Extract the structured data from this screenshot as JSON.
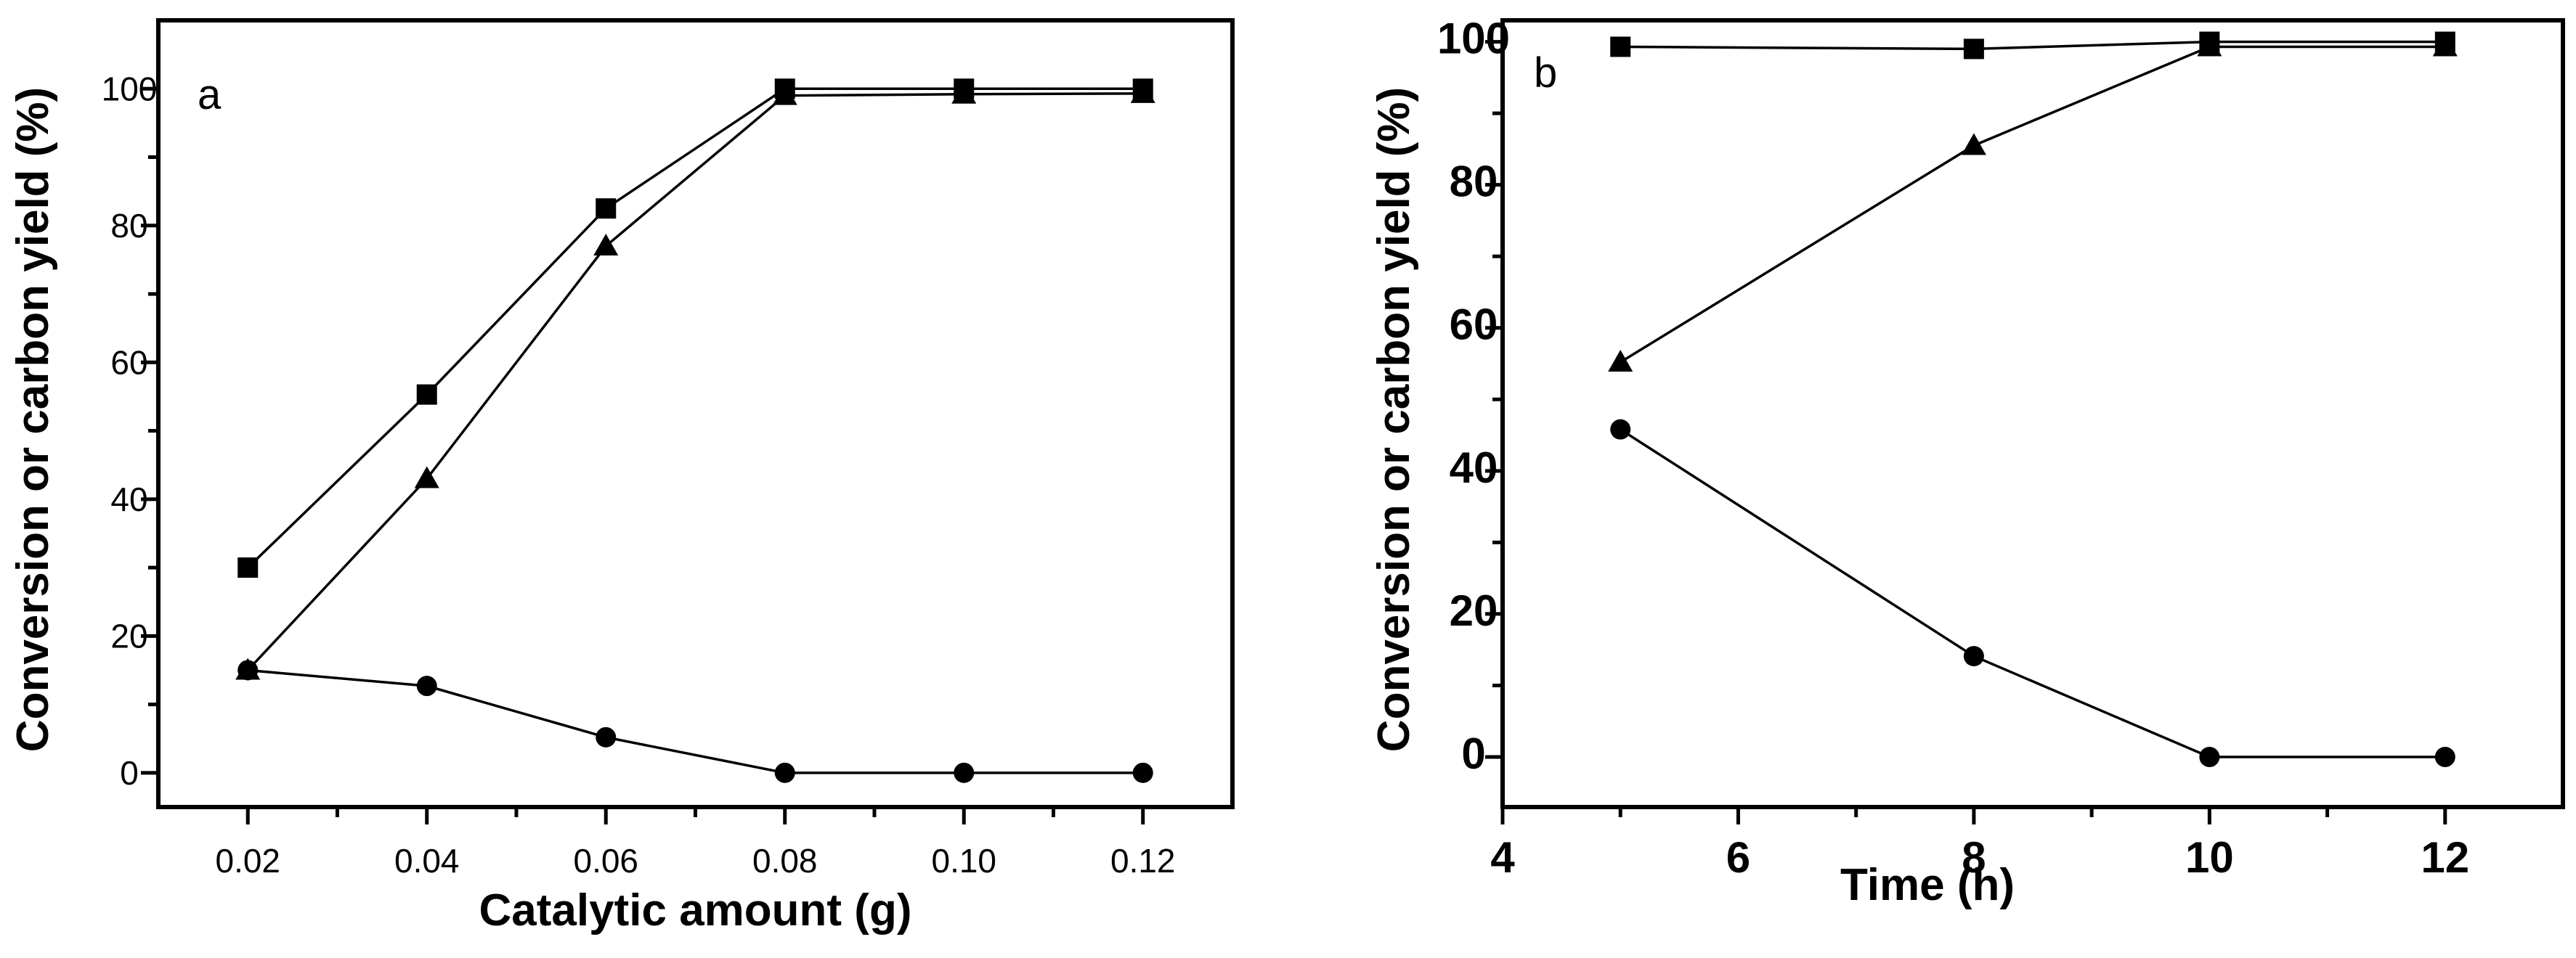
{
  "chart_data": [
    {
      "type": "line",
      "panel_label": "a",
      "xlabel": "Catalytic amount (g)",
      "ylabel": "Conversion or carbon yield (%)",
      "xlim": [
        0.01,
        0.13
      ],
      "ylim": [
        -5,
        110
      ],
      "x_ticks": [
        0.02,
        0.04,
        0.06,
        0.08,
        0.1,
        0.12
      ],
      "x_tick_labels": [
        "0.02",
        "0.04",
        "0.06",
        "0.08",
        "0.10",
        "0.12"
      ],
      "y_ticks": [
        0,
        20,
        40,
        60,
        80,
        100
      ],
      "y_tick_labels": [
        "0",
        "20",
        "40",
        "60",
        "80",
        "100"
      ],
      "x": [
        0.02,
        0.04,
        0.06,
        0.08,
        0.1,
        0.12
      ],
      "series": [
        {
          "name": "square",
          "marker": "square",
          "values": [
            30,
            55.3,
            82.5,
            100,
            100,
            100
          ]
        },
        {
          "name": "triangle",
          "marker": "triangle",
          "values": [
            15,
            43,
            77,
            99,
            99.2,
            99.3
          ]
        },
        {
          "name": "circle",
          "marker": "circle",
          "values": [
            15,
            12.7,
            5.2,
            0,
            0,
            0
          ]
        }
      ]
    },
    {
      "type": "line",
      "panel_label": "b",
      "xlabel": "Time (h)",
      "ylabel": "Conversion or carbon yield (%)",
      "xlim": [
        4,
        13
      ],
      "ylim": [
        -7,
        103
      ],
      "x_ticks": [
        4,
        6,
        8,
        10,
        12
      ],
      "x_tick_labels": [
        "4",
        "6",
        "8",
        "10",
        "12"
      ],
      "y_ticks": [
        0,
        20,
        40,
        60,
        80,
        100
      ],
      "y_tick_labels": [
        "0",
        "20",
        "40",
        "60",
        "80",
        "100"
      ],
      "x": [
        5,
        8,
        10,
        12
      ],
      "series": [
        {
          "name": "square",
          "marker": "square",
          "values": [
            99.3,
            99,
            100,
            100
          ]
        },
        {
          "name": "triangle",
          "marker": "triangle",
          "values": [
            55.2,
            85.5,
            99.3,
            99.3
          ]
        },
        {
          "name": "circle",
          "marker": "circle",
          "values": [
            45.8,
            14.1,
            0,
            0
          ]
        }
      ]
    }
  ]
}
